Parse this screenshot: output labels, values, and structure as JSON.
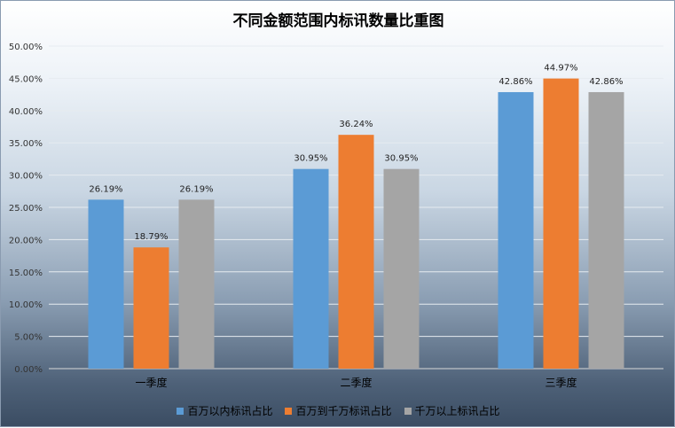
{
  "chart_data": {
    "type": "bar",
    "title": "不同金额范围内标讯数量比重图",
    "categories": [
      "一季度",
      "二季度",
      "三季度"
    ],
    "series": [
      {
        "name": "百万以内标讯占比",
        "color": "#5b9bd5",
        "values": [
          26.19,
          30.95,
          42.86
        ],
        "labels": [
          "26.19%",
          "30.95%",
          "42.86%"
        ]
      },
      {
        "name": "百万到千万标讯占比",
        "color": "#ed7d31",
        "values": [
          18.79,
          36.24,
          44.97
        ],
        "labels": [
          "18.79%",
          "36.24%",
          "44.97%"
        ]
      },
      {
        "name": "千万以上标讯占比",
        "color": "#a5a5a5",
        "values": [
          26.19,
          30.95,
          42.86
        ],
        "labels": [
          "26.19%",
          "30.95%",
          "42.86%"
        ]
      }
    ],
    "ylim": [
      0,
      50
    ],
    "yticks": [
      "0.00%",
      "5.00%",
      "10.00%",
      "15.00%",
      "20.00%",
      "25.00%",
      "30.00%",
      "35.00%",
      "40.00%",
      "45.00%",
      "50.00%"
    ],
    "grid": true,
    "legend": "bottom"
  }
}
